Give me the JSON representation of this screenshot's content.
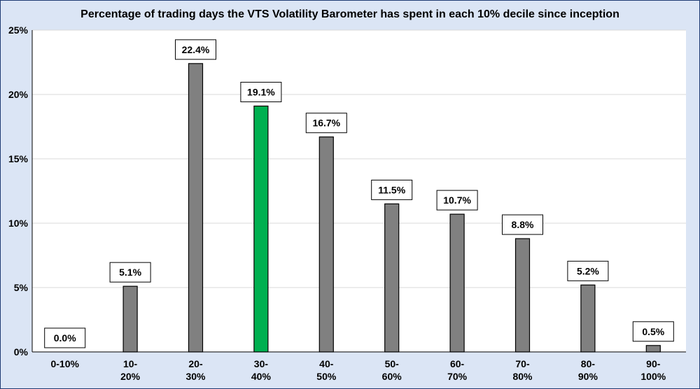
{
  "chart_data": {
    "type": "bar",
    "title": "Percentage of trading days the VTS Volatility Barometer has spent in each 10% decile since inception",
    "xlabel": "",
    "ylabel": "",
    "categories": [
      [
        "0-10%"
      ],
      [
        "10-",
        "20%"
      ],
      [
        "20-",
        "30%"
      ],
      [
        "30-",
        "40%"
      ],
      [
        "40-",
        "50%"
      ],
      [
        "50-",
        "60%"
      ],
      [
        "60-",
        "70%"
      ],
      [
        "70-",
        "80%"
      ],
      [
        "80-",
        "90%"
      ],
      [
        "90-",
        "100%"
      ]
    ],
    "values": [
      0.0,
      5.1,
      22.4,
      19.1,
      16.7,
      11.5,
      10.7,
      8.8,
      5.2,
      0.5
    ],
    "data_labels": [
      "0.0%",
      "5.1%",
      "22.4%",
      "19.1%",
      "16.7%",
      "11.5%",
      "10.7%",
      "8.8%",
      "5.2%",
      "0.5%"
    ],
    "ylim": [
      0,
      25
    ],
    "yticks": [
      0,
      5,
      10,
      15,
      20,
      25
    ],
    "ytick_labels": [
      "0%",
      "5%",
      "10%",
      "15%",
      "20%",
      "25%"
    ],
    "grid": true,
    "legend": "none",
    "colors": {
      "bar": "#808080",
      "highlight_bar": "#00b050",
      "highlight_index": 3,
      "plot_background": "#ffffff",
      "outer_background": "#dbe5f5",
      "gridline": "#d9d9d9"
    }
  }
}
